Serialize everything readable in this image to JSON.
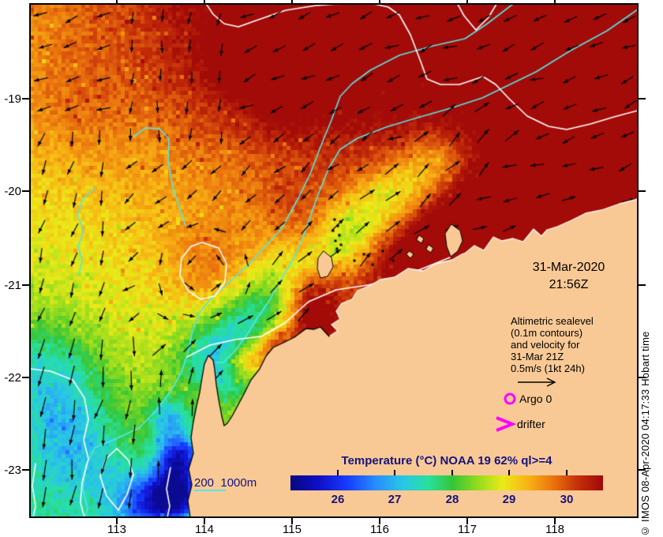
{
  "title_block": {
    "date": "31-Mar-2020",
    "time": "21:56Z"
  },
  "axes": {
    "x": {
      "ticks": [
        "113",
        "114",
        "115",
        "116",
        "117",
        "118"
      ]
    },
    "y": {
      "ticks": [
        "-19",
        "-20",
        "-21",
        "-22",
        "-23"
      ]
    }
  },
  "annotations": {
    "velocity_note": {
      "lines": [
        "Altimetric sealevel",
        "(0.1m contours)",
        "and velocity for",
        "31-Mar 21Z",
        "0.5m/s (1kt 24h)"
      ]
    },
    "argo_label": "Argo 0",
    "drifter_label": "drifter",
    "bathymetry_legend": "200  1000m"
  },
  "colorbar": {
    "title": "Temperature (°C) NOAA 19 62% ql>=4",
    "tick_labels": [
      "26",
      "27",
      "28",
      "29",
      "30"
    ]
  },
  "copyright": "© IMOS 08-Apr-2020 04:17:33 Hobart time",
  "colors": {
    "land": "#F9C995",
    "annotation_navy": "#14147C",
    "marker_magenta": "#FF00FF",
    "contour_cyan": "#55E6E6",
    "contour_white": "#FFFFFF"
  },
  "chart_data": {
    "type": "heatmap",
    "title": "Temperature (°C) NOAA 19 62% ql>=4",
    "x_axis": {
      "ticks": [
        113,
        114,
        115,
        116,
        117,
        118
      ],
      "range": [
        112.0,
        118.95
      ],
      "units": "degrees longitude E"
    },
    "y_axis": {
      "ticks": [
        -19,
        -20,
        -21,
        -22,
        -23
      ],
      "range": [
        -23.5,
        -17.98
      ],
      "units": "degrees latitude"
    },
    "colorbar": {
      "range": [
        25.2,
        30.6
      ],
      "ticks": [
        26,
        27,
        28,
        29,
        30
      ],
      "palette": "jet",
      "units": "°C"
    },
    "datetime_shown": "31-Mar-2020 21:56Z",
    "overlays": {
      "white_contours": "altimetric sealevel, 0.1m interval",
      "cyan_contours": "bathymetry 200 m and 1000 m",
      "vectors": "velocity, scale arrow 0.5 m/s (1kt 24h)",
      "markers": [
        "Argo 0 (magenta circle)",
        "drifter (magenta arrow)"
      ]
    },
    "field_summary": [
      {
        "region": "offshore northeast (lon>115.5, lat>-20.5)",
        "sst_c": 30.5
      },
      {
        "region": "northwest / top-left",
        "sst_c": 29.5
      },
      {
        "region": "central offshore (eddy, white oval)",
        "sst_c": 29.5
      },
      {
        "region": "shelf tongue running SW-NE toward coast",
        "sst_c": 28.0
      },
      {
        "region": "warm patch off North West Cape",
        "sst_c": 30.5
      },
      {
        "region": "southwest offshore",
        "sst_c": 27.5
      },
      {
        "region": "cold coastal strip near lat -22.3 to -23.5",
        "sst_c": 25.5
      },
      {
        "region": "Exmouth Gulf",
        "sst_c": 28.0
      }
    ],
    "flow_summary": "W/SW flow in hot NE offshore water; NE flow along shelf band; S flow along western edge and bottom-left; N flow in cold strip beside southern coast"
  }
}
